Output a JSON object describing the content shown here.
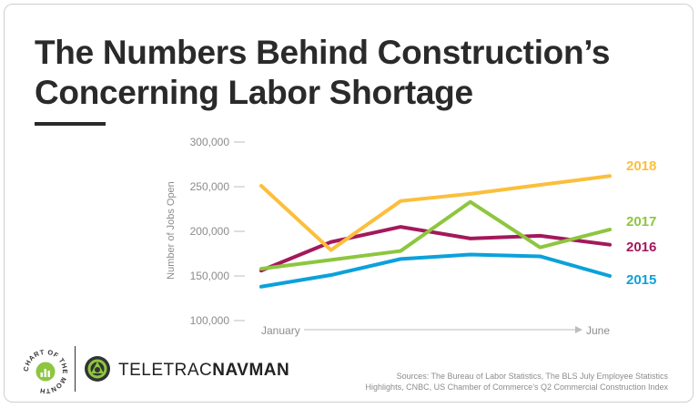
{
  "title_lines": [
    "The Numbers Behind Construction’s",
    "Concerning Labor Shortage"
  ],
  "chart_data": {
    "type": "line",
    "ylabel": "Number of Jobs Open",
    "ylim": [
      100000,
      300000
    ],
    "yticks": [
      300000,
      250000,
      200000,
      150000,
      100000
    ],
    "ytick_labels": [
      "300,000",
      "250,000",
      "200,000",
      "150,000",
      "100,000"
    ],
    "x": [
      "January",
      "",
      "",
      "",
      "",
      "June"
    ],
    "x_start_label": "January",
    "x_end_label": "June",
    "series": [
      {
        "name": "2018",
        "color": "#fbbf3c",
        "values": [
          251000,
          179000,
          234000,
          242000,
          252000,
          262000
        ]
      },
      {
        "name": "2017",
        "color": "#8dc63f",
        "values": [
          158000,
          168000,
          178000,
          233000,
          182000,
          202000
        ]
      },
      {
        "name": "2016",
        "color": "#a3195b",
        "values": [
          156000,
          188000,
          205000,
          192000,
          195000,
          185000
        ]
      },
      {
        "name": "2015",
        "color": "#0ca1db",
        "values": [
          138000,
          151000,
          169000,
          174000,
          172000,
          150000
        ]
      }
    ],
    "grid": false,
    "legend": "right-end labels"
  },
  "footer": {
    "badge_text": "CHART OF THE MONTH",
    "brand_light": "TELETRAC",
    "brand_bold": "NAVMAN",
    "sources_line1": "Sources: The Bureau of Labor Statistics, The BLS July Employee Statistics",
    "sources_line2": "Highlights, CNBC, US Chamber of Commerce’s Q2 Commercial Construction Index"
  }
}
